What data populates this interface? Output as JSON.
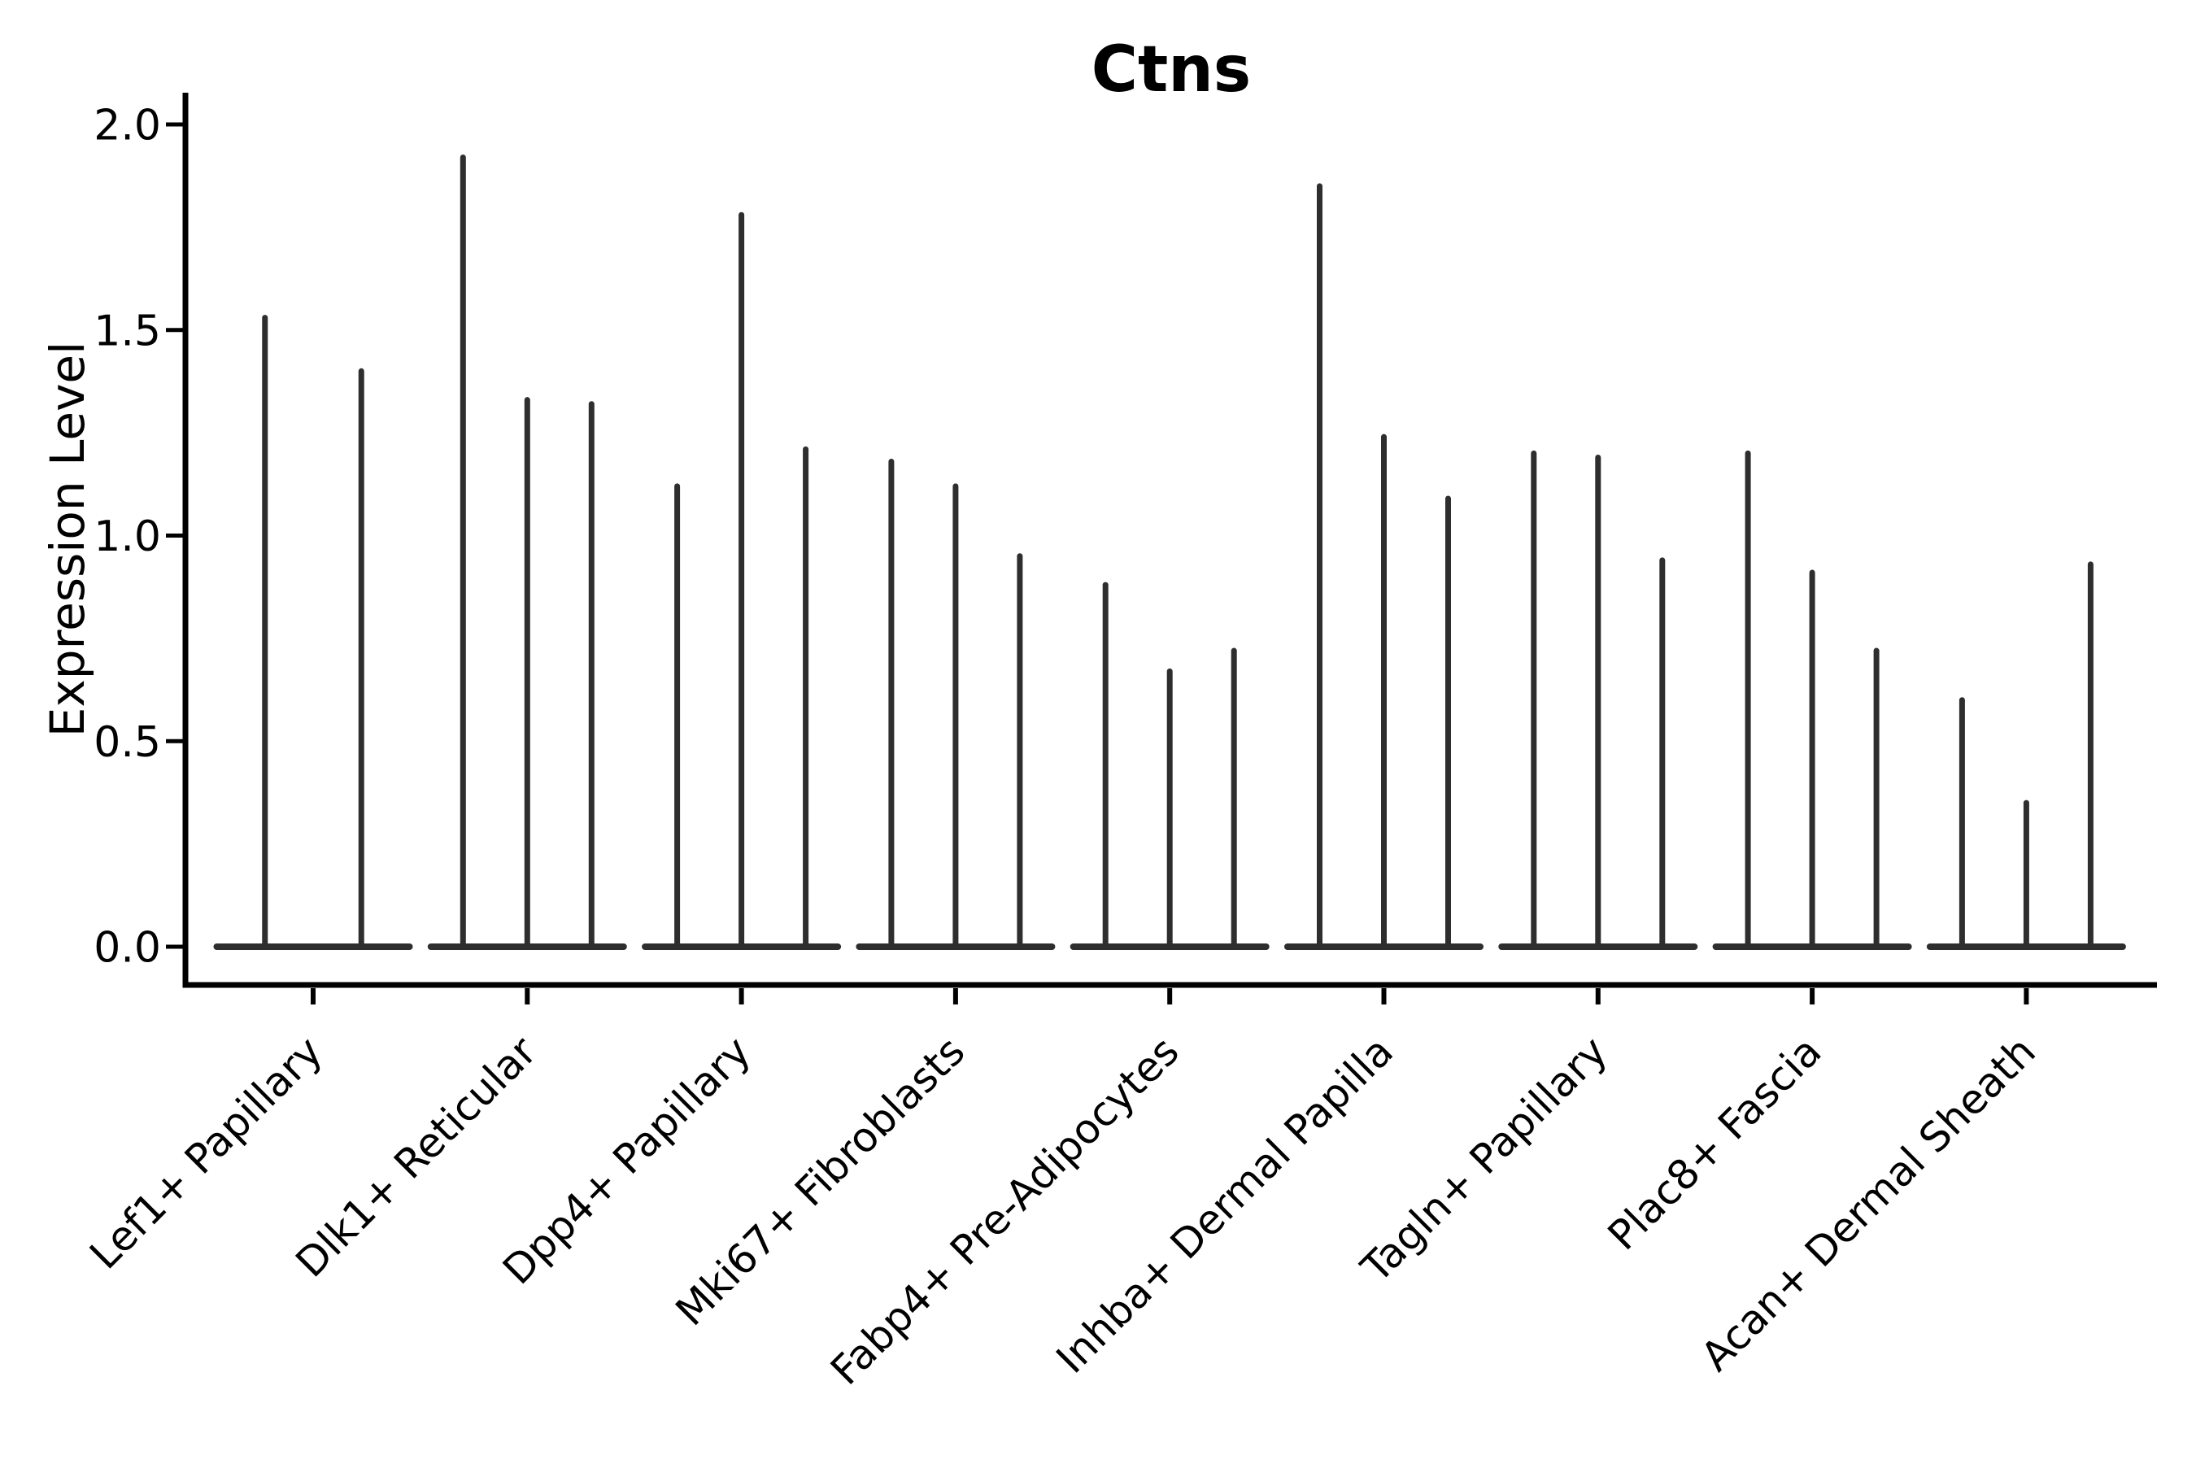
{
  "page": {
    "background": "#ffffff"
  },
  "chart_data": {
    "type": "violin",
    "title": "Ctns",
    "ylabel": "Expression Level",
    "xlabel": "",
    "ylim": [
      0.0,
      2.0
    ],
    "yticks": [
      "0.0",
      "0.5",
      "1.0",
      "1.5",
      "2.0"
    ],
    "ytick_values": [
      0.0,
      0.5,
      1.0,
      1.5,
      2.0
    ],
    "grid": false,
    "legend": null,
    "categories": [
      "Lef1+ Papillary",
      "Dlk1+ Reticular",
      "Dpp4+ Papillary",
      "Mki67+ Fibroblasts",
      "Fabp4+ Pre-Adipocytes",
      "Inhba+ Dermal Papilla",
      "Tagln+ Papillary",
      "Plac8+ Fascia",
      "Acan+ Dermal Sheath"
    ],
    "violin_peaks": [
      [
        1.53,
        1.4
      ],
      [
        1.92,
        1.33,
        1.32
      ],
      [
        1.12,
        1.78,
        1.21
      ],
      [
        1.18,
        1.12,
        0.95
      ],
      [
        0.88,
        0.67,
        0.72
      ],
      [
        1.85,
        1.24,
        1.09
      ],
      [
        1.2,
        1.19,
        0.94
      ],
      [
        1.2,
        0.91,
        0.72
      ],
      [
        0.6,
        0.35,
        0.93
      ]
    ],
    "colors": {
      "violin": "#2e2e2e",
      "axis": "#000000",
      "text": "#000000",
      "background": "#ffffff"
    }
  }
}
